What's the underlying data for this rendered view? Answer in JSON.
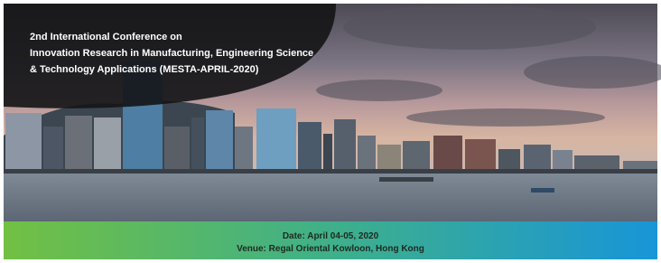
{
  "banner": {
    "title_lines": [
      "2nd International Conference on",
      "Innovation Research in Manufacturing, Engineering Science",
      "& Technology Applications (MESTA-APRIL-2020)"
    ],
    "date": "Date: April 04-05, 2020",
    "venue": "Venue: Regal Oriental Kowloon, Hong Kong"
  }
}
